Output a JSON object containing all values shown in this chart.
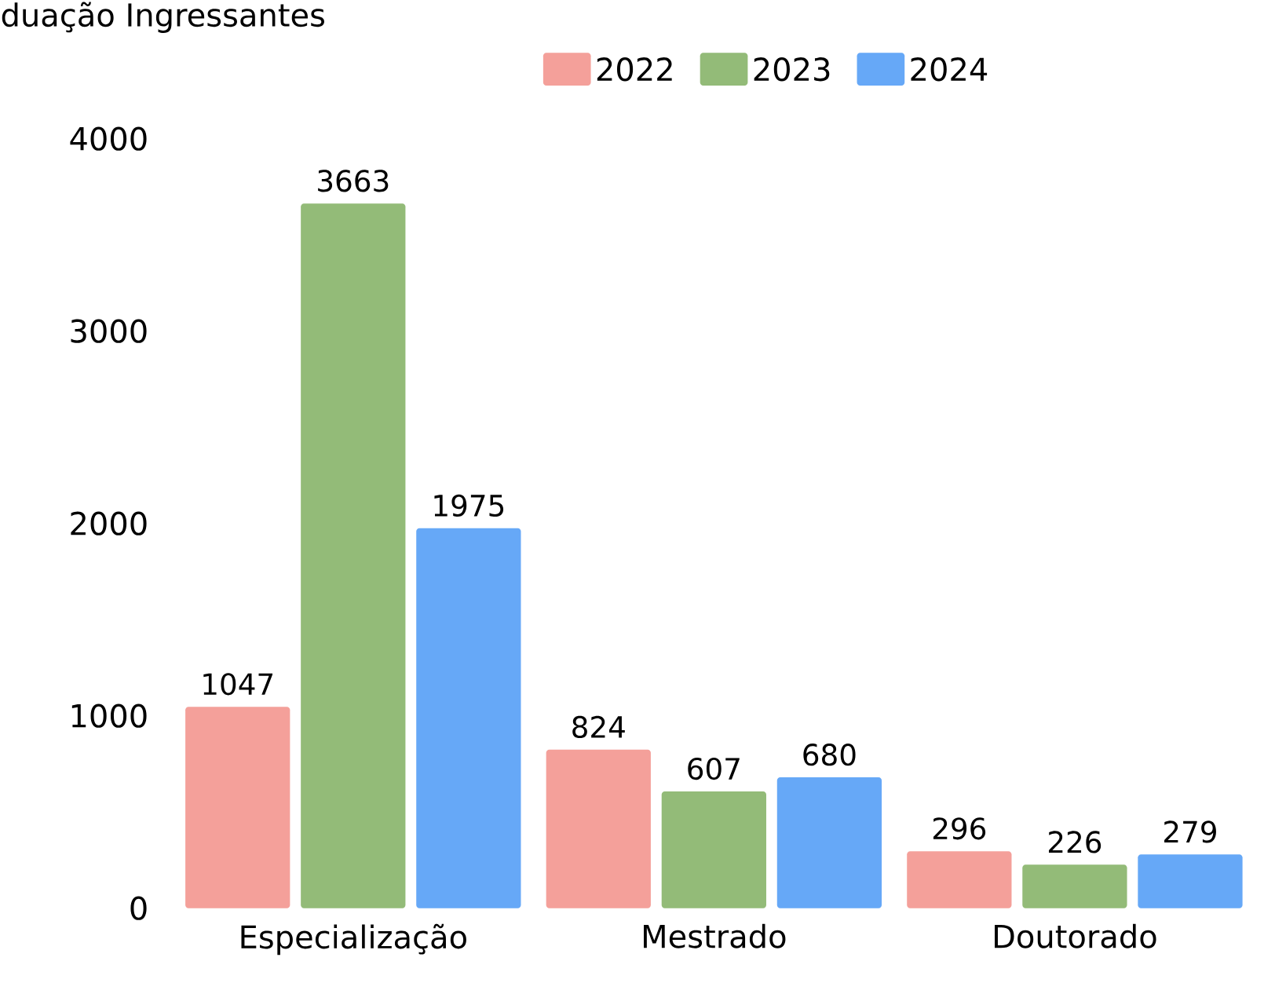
{
  "chart_data": {
    "type": "bar",
    "title": "duação Ingressantes",
    "categories": [
      "Especialização",
      "Mestrado",
      "Doutorado"
    ],
    "series": [
      {
        "name": "2022",
        "color": "#f4a09a",
        "values": [
          1047,
          824,
          296
        ]
      },
      {
        "name": "2023",
        "color": "#93bb78",
        "values": [
          3663,
          607,
          226
        ]
      },
      {
        "name": "2024",
        "color": "#66a8f7",
        "values": [
          1975,
          680,
          279
        ]
      }
    ],
    "ylim": [
      0,
      4000
    ],
    "yticks": [
      0,
      1000,
      2000,
      3000,
      4000
    ],
    "grid": false,
    "legend": "top",
    "data_labels": true
  }
}
